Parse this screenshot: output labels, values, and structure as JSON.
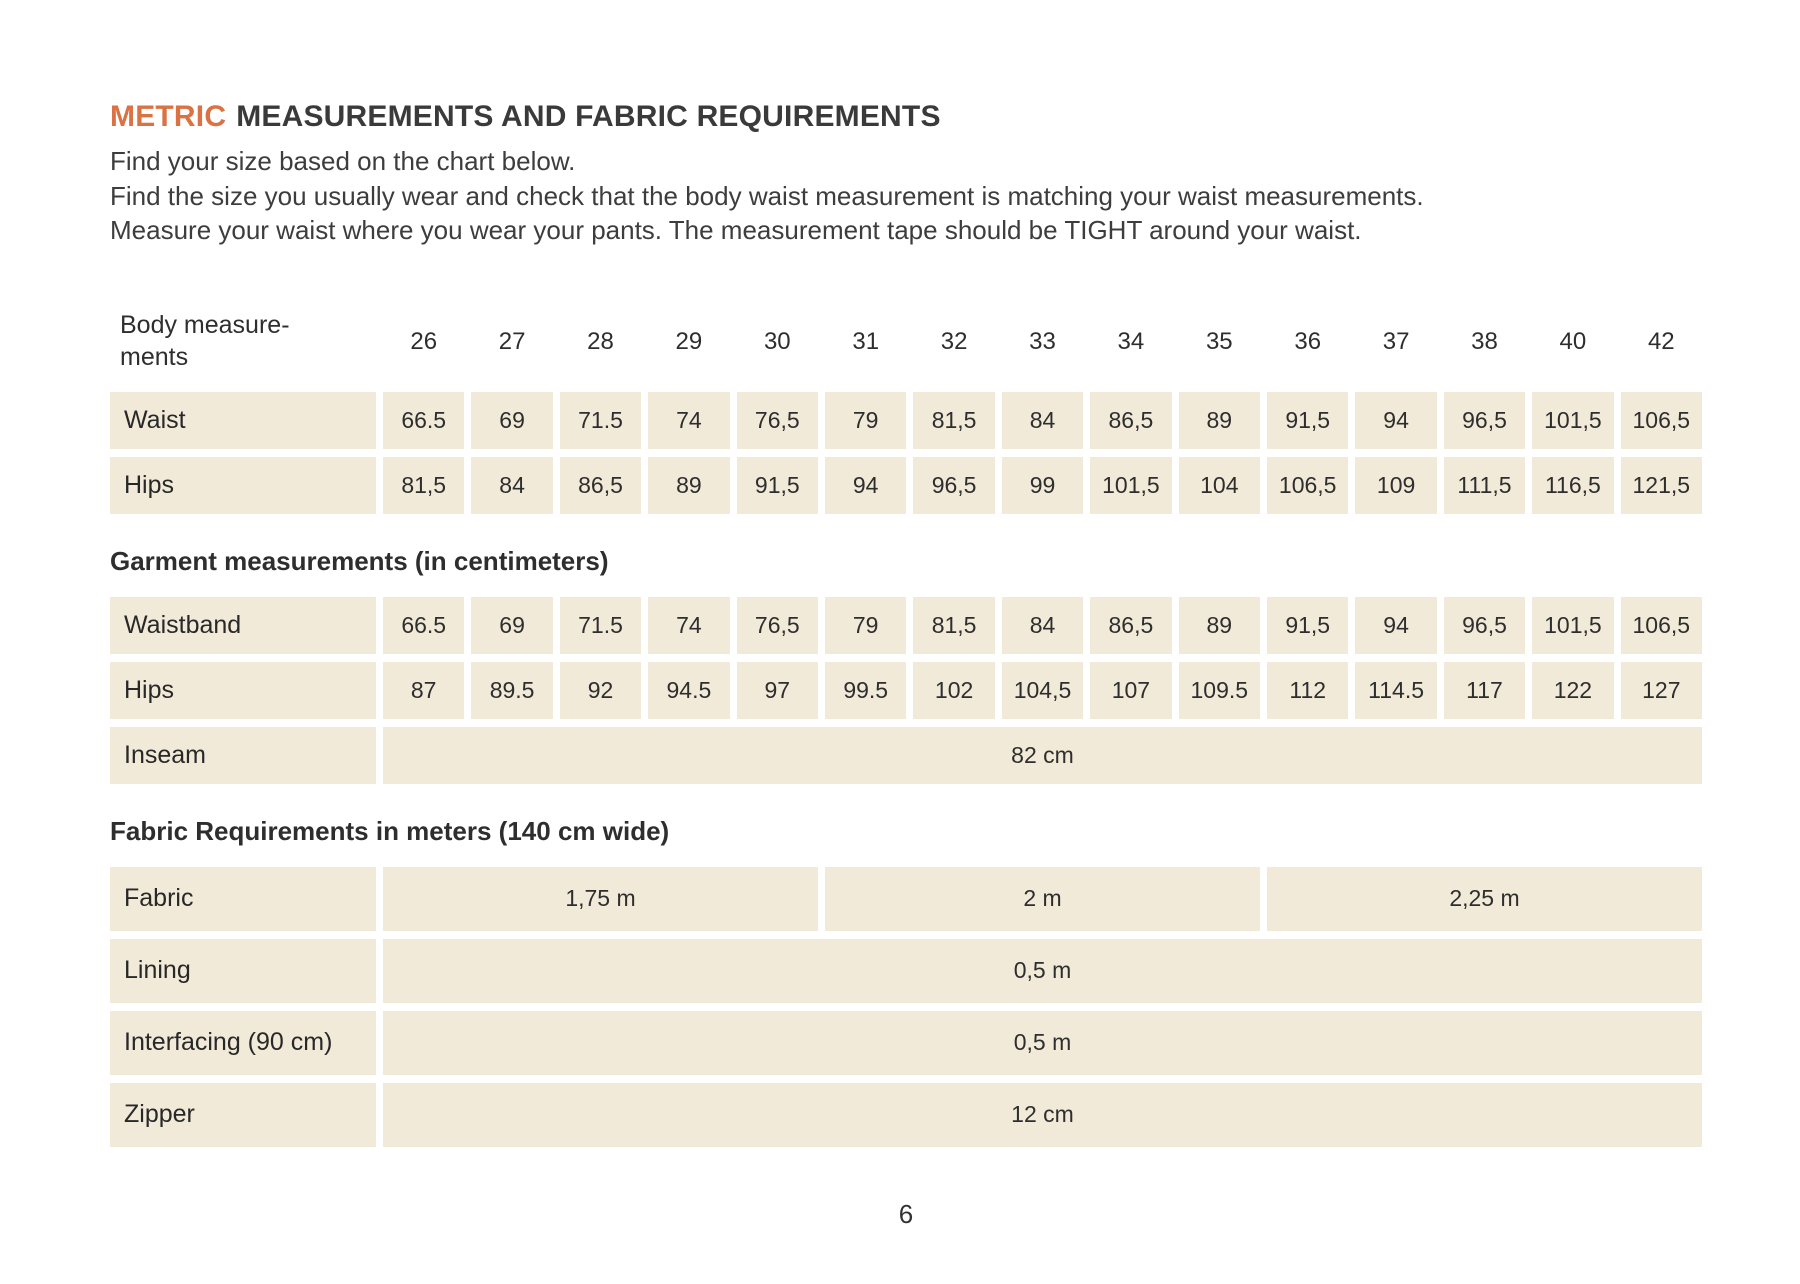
{
  "page": {
    "title_highlight": "METRIC",
    "title_rest": "MEASUREMENTS AND FABRIC REQUIREMENTS",
    "intro_lines": [
      "Find your size based on the chart below.",
      "Find the size you usually wear and check that the body waist measurement is matching your waist measurements.",
      "Measure your waist where you wear your pants. The measurement tape should be TIGHT around your waist."
    ],
    "page_number": "6"
  },
  "colors": {
    "accent_orange": "#db7244",
    "cell_beige": "#f2ead8",
    "text_dark": "#2e2e2e"
  },
  "size_chart": {
    "header_label": "Body measure-\nments",
    "sizes": [
      "26",
      "27",
      "28",
      "29",
      "30",
      "31",
      "32",
      "33",
      "34",
      "35",
      "36",
      "37",
      "38",
      "40",
      "42"
    ],
    "body_rows": [
      {
        "label": "Waist",
        "values": [
          "66.5",
          "69",
          "71.5",
          "74",
          "76,5",
          "79",
          "81,5",
          "84",
          "86,5",
          "89",
          "91,5",
          "94",
          "96,5",
          "101,5",
          "106,5"
        ]
      },
      {
        "label": "Hips",
        "values": [
          "81,5",
          "84",
          "86,5",
          "89",
          "91,5",
          "94",
          "96,5",
          "99",
          "101,5",
          "104",
          "106,5",
          "109",
          "111,5",
          "116,5",
          "121,5"
        ]
      }
    ],
    "garment_heading": "Garment measurements (in centimeters)",
    "garment_rows": [
      {
        "label": "Waistband",
        "values": [
          "66.5",
          "69",
          "71.5",
          "74",
          "76,5",
          "79",
          "81,5",
          "84",
          "86,5",
          "89",
          "91,5",
          "94",
          "96,5",
          "101,5",
          "106,5"
        ]
      },
      {
        "label": "Hips",
        "values": [
          "87",
          "89.5",
          "92",
          "94.5",
          "97",
          "99.5",
          "102",
          "104,5",
          "107",
          "109.5",
          "112",
          "114.5",
          "117",
          "122",
          "127"
        ]
      }
    ],
    "inseam_row": {
      "label": "Inseam",
      "value": "82 cm"
    },
    "fabric_heading": "Fabric Requirements in meters (140 cm wide)",
    "fabric_row": {
      "label": "Fabric",
      "spans": [
        "1,75 m",
        "2 m",
        "2,25 m"
      ]
    },
    "fabric_rows": [
      {
        "label": "Lining",
        "value": "0,5 m"
      },
      {
        "label": "Interfacing (90 cm)",
        "value": "0,5 m"
      },
      {
        "label": "Zipper",
        "value": "12 cm"
      }
    ]
  }
}
